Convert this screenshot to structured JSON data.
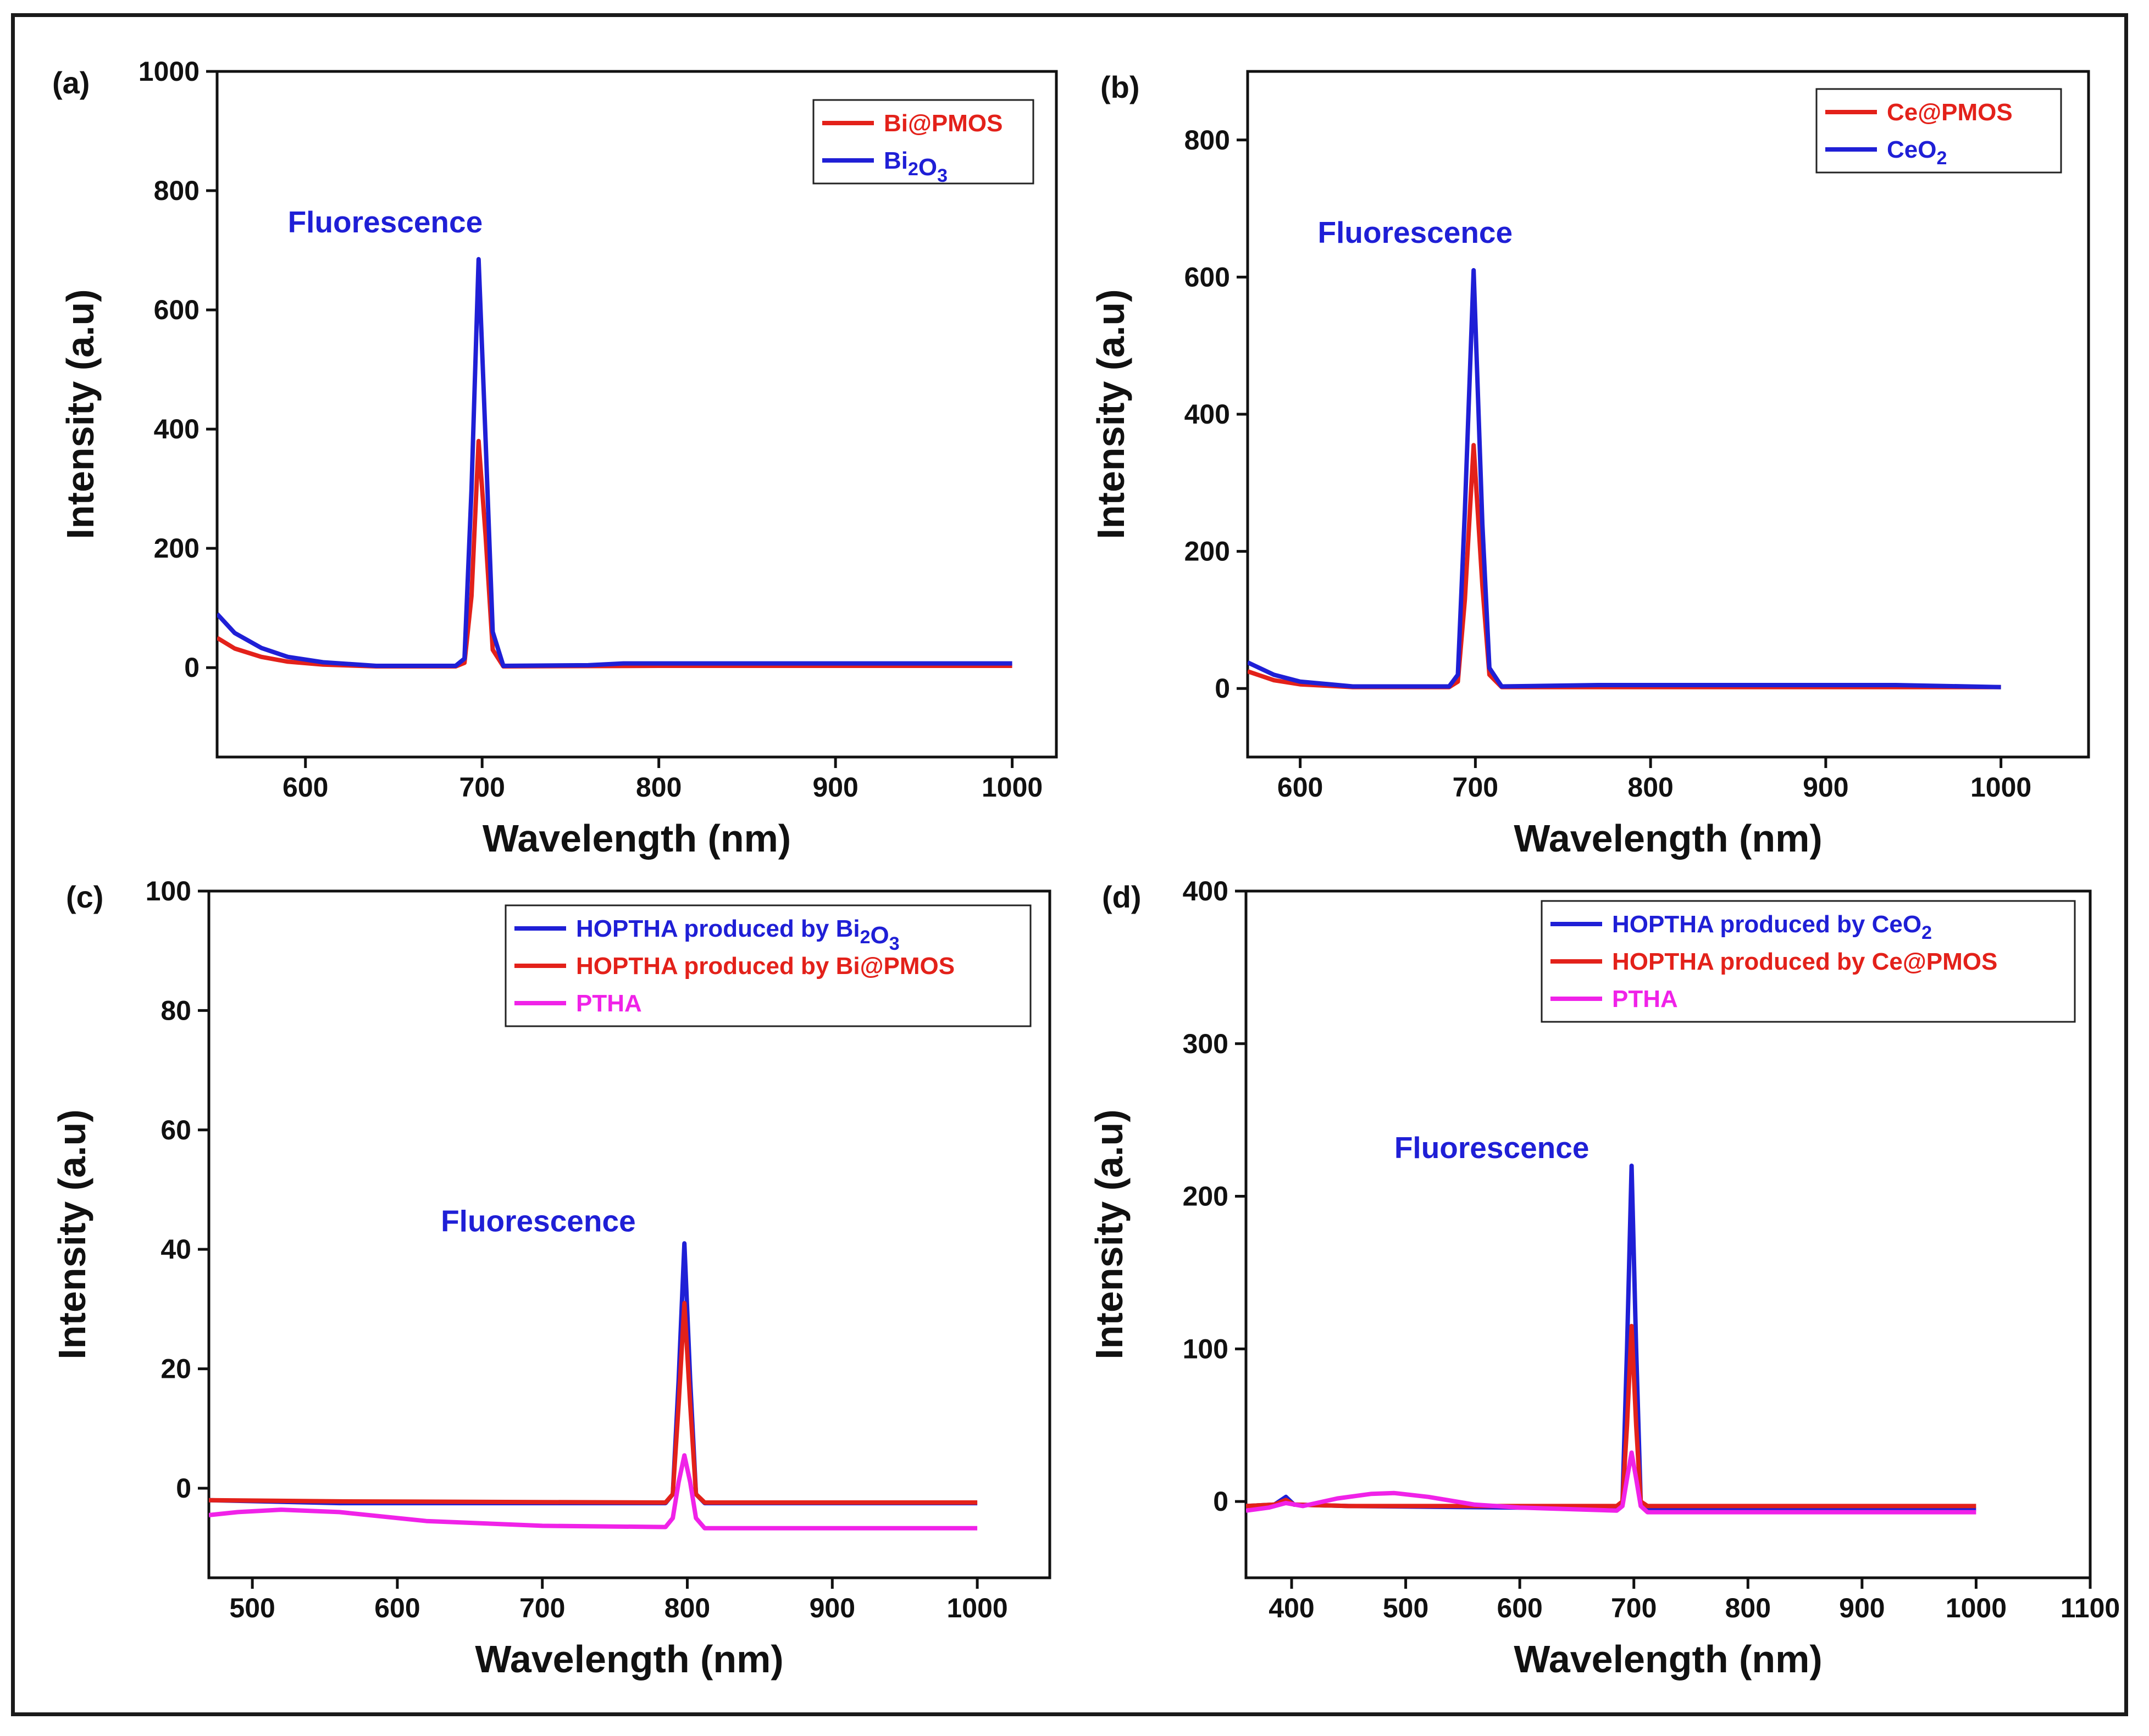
{
  "figure": {
    "colors": {
      "blue": "#1f1fd6",
      "red": "#e3211a",
      "magenta": "#f022e8",
      "axis": "#111111"
    }
  },
  "chart_data": [
    {
      "panel": "(a)",
      "type": "line",
      "xlabel": "Wavelength (nm)",
      "ylabel": "Intensity (a.u)",
      "xlim": [
        550,
        1025
      ],
      "ylim": [
        -150,
        1000
      ],
      "xticks": [
        600,
        700,
        800,
        900,
        1000
      ],
      "yticks": [
        0,
        200,
        400,
        600,
        800,
        1000
      ],
      "annotation": {
        "text": "Fluorescence",
        "x": 590,
        "y": 730
      },
      "legend": {
        "placement": "top-right"
      },
      "series": [
        {
          "name": "Bi@PMOS",
          "legend_parts": [
            [
              "Bi@PMOS",
              ""
            ]
          ],
          "color": "red",
          "points": [
            [
              550,
              50
            ],
            [
              560,
              32
            ],
            [
              575,
              18
            ],
            [
              590,
              10
            ],
            [
              610,
              5
            ],
            [
              640,
              2
            ],
            [
              685,
              2
            ],
            [
              690,
              8
            ],
            [
              694,
              120
            ],
            [
              698,
              380
            ],
            [
              702,
              220
            ],
            [
              706,
              30
            ],
            [
              712,
              2
            ],
            [
              800,
              3
            ],
            [
              1000,
              3
            ]
          ]
        },
        {
          "name": "Bi2O3",
          "legend_parts": [
            [
              "Bi",
              ""
            ],
            [
              "2",
              "sub"
            ],
            [
              "O",
              ""
            ],
            [
              "3",
              "sub"
            ]
          ],
          "color": "blue",
          "points": [
            [
              550,
              90
            ],
            [
              560,
              58
            ],
            [
              575,
              33
            ],
            [
              590,
              18
            ],
            [
              610,
              9
            ],
            [
              640,
              3
            ],
            [
              685,
              3
            ],
            [
              690,
              15
            ],
            [
              694,
              300
            ],
            [
              698,
              685
            ],
            [
              702,
              380
            ],
            [
              706,
              60
            ],
            [
              712,
              3
            ],
            [
              760,
              4
            ],
            [
              780,
              7
            ],
            [
              1000,
              7
            ]
          ]
        }
      ]
    },
    {
      "panel": "(b)",
      "type": "line",
      "xlabel": "Wavelength (nm)",
      "ylabel": "Intensity (a.u)",
      "xlim": [
        570,
        1050
      ],
      "ylim": [
        -100,
        900
      ],
      "xticks": [
        600,
        700,
        800,
        900,
        1000
      ],
      "yticks": [
        0,
        200,
        400,
        600,
        800
      ],
      "annotation": {
        "text": "Fluorescence",
        "x": 610,
        "y": 650
      },
      "legend": {
        "placement": "top-right"
      },
      "series": [
        {
          "name": "Ce@PMOS",
          "legend_parts": [
            [
              "Ce@PMOS",
              ""
            ]
          ],
          "color": "red",
          "points": [
            [
              570,
              25
            ],
            [
              585,
              12
            ],
            [
              600,
              6
            ],
            [
              630,
              2
            ],
            [
              685,
              2
            ],
            [
              690,
              10
            ],
            [
              694,
              130
            ],
            [
              699,
              355
            ],
            [
              704,
              150
            ],
            [
              708,
              20
            ],
            [
              715,
              2
            ],
            [
              800,
              2
            ],
            [
              1000,
              2
            ]
          ]
        },
        {
          "name": "CeO2",
          "legend_parts": [
            [
              "CeO",
              ""
            ],
            [
              "2",
              "sub"
            ]
          ],
          "color": "blue",
          "points": [
            [
              570,
              38
            ],
            [
              585,
              20
            ],
            [
              600,
              10
            ],
            [
              630,
              3
            ],
            [
              685,
              3
            ],
            [
              690,
              20
            ],
            [
              694,
              260
            ],
            [
              699,
              610
            ],
            [
              704,
              240
            ],
            [
              708,
              30
            ],
            [
              715,
              3
            ],
            [
              770,
              5
            ],
            [
              940,
              5
            ],
            [
              1000,
              2
            ]
          ]
        }
      ]
    },
    {
      "panel": "(c)",
      "type": "line",
      "xlabel": "Wavelength (nm)",
      "ylabel": "Intensity (a.u)",
      "xlim": [
        470,
        1050
      ],
      "ylim": [
        -15,
        100
      ],
      "xticks": [
        500,
        600,
        700,
        800,
        900,
        1000
      ],
      "yticks": [
        0,
        20,
        40,
        60,
        80,
        100
      ],
      "annotation": {
        "text": "Fluorescence",
        "x": 630,
        "y": 43
      },
      "legend": {
        "placement": "top-right"
      },
      "series": [
        {
          "name": "HOPTHA produced by Bi2O3",
          "legend_parts": [
            [
              "HOPTHA produced by Bi",
              ""
            ],
            [
              "2",
              "sub"
            ],
            [
              "O",
              ""
            ],
            [
              "3",
              "sub"
            ]
          ],
          "color": "blue",
          "points": [
            [
              470,
              -2
            ],
            [
              560,
              -2.5
            ],
            [
              785,
              -2.5
            ],
            [
              790,
              -1
            ],
            [
              794,
              18
            ],
            [
              798,
              41
            ],
            [
              802,
              18
            ],
            [
              806,
              -1
            ],
            [
              812,
              -2.5
            ],
            [
              1000,
              -2.5
            ]
          ]
        },
        {
          "name": "HOPTHA produced by Bi@PMOS",
          "legend_parts": [
            [
              "HOPTHA produced by Bi@PMOS",
              ""
            ]
          ],
          "color": "red",
          "points": [
            [
              470,
              -2
            ],
            [
              560,
              -2.2
            ],
            [
              785,
              -2.4
            ],
            [
              790,
              -1
            ],
            [
              794,
              14
            ],
            [
              798,
              31
            ],
            [
              802,
              14
            ],
            [
              806,
              -1
            ],
            [
              812,
              -2.4
            ],
            [
              1000,
              -2.4
            ]
          ]
        },
        {
          "name": "PTHA",
          "legend_parts": [
            [
              "PTHA",
              ""
            ]
          ],
          "color": "magenta",
          "points": [
            [
              470,
              -4.5
            ],
            [
              490,
              -4
            ],
            [
              520,
              -3.6
            ],
            [
              560,
              -4
            ],
            [
              620,
              -5.5
            ],
            [
              700,
              -6.3
            ],
            [
              785,
              -6.5
            ],
            [
              790,
              -5
            ],
            [
              794,
              1
            ],
            [
              798,
              5.5
            ],
            [
              802,
              1
            ],
            [
              806,
              -5
            ],
            [
              812,
              -6.7
            ],
            [
              1000,
              -6.7
            ]
          ]
        }
      ]
    },
    {
      "panel": "(d)",
      "type": "line",
      "xlabel": "Wavelength (nm)",
      "ylabel": "Intensity (a.u)",
      "xlim": [
        360,
        1100
      ],
      "ylim": [
        -50,
        400
      ],
      "xticks": [
        400,
        500,
        600,
        700,
        800,
        900,
        1000,
        1100
      ],
      "yticks": [
        0,
        100,
        200,
        300,
        400
      ],
      "annotation": {
        "text": "Fluorescence",
        "x": 490,
        "y": 225
      },
      "legend": {
        "placement": "top-right"
      },
      "series": [
        {
          "name": "HOPTHA produced by CeO2",
          "legend_parts": [
            [
              "HOPTHA produced by CeO",
              ""
            ],
            [
              "2",
              "sub"
            ]
          ],
          "color": "blue",
          "points": [
            [
              360,
              -3
            ],
            [
              385,
              -2
            ],
            [
              395,
              3
            ],
            [
              402,
              -2
            ],
            [
              450,
              -3
            ],
            [
              600,
              -4
            ],
            [
              685,
              -5
            ],
            [
              690,
              0
            ],
            [
              694,
              100
            ],
            [
              698,
              220
            ],
            [
              702,
              100
            ],
            [
              706,
              0
            ],
            [
              712,
              -5
            ],
            [
              1000,
              -5
            ]
          ]
        },
        {
          "name": "HOPTHA produced by Ce@PMOS",
          "legend_parts": [
            [
              "HOPTHA produced by Ce@PMOS",
              ""
            ]
          ],
          "color": "red",
          "points": [
            [
              360,
              -3
            ],
            [
              385,
              -2
            ],
            [
              395,
              1
            ],
            [
              402,
              -2
            ],
            [
              450,
              -3
            ],
            [
              600,
              -3
            ],
            [
              685,
              -3
            ],
            [
              690,
              0
            ],
            [
              694,
              50
            ],
            [
              698,
              115
            ],
            [
              702,
              50
            ],
            [
              706,
              0
            ],
            [
              712,
              -3
            ],
            [
              1000,
              -3
            ]
          ]
        },
        {
          "name": "PTHA",
          "legend_parts": [
            [
              "PTHA",
              ""
            ]
          ],
          "color": "magenta",
          "points": [
            [
              360,
              -6
            ],
            [
              380,
              -4
            ],
            [
              395,
              -1
            ],
            [
              410,
              -3
            ],
            [
              440,
              2
            ],
            [
              470,
              5
            ],
            [
              490,
              5.5
            ],
            [
              520,
              3
            ],
            [
              560,
              -2
            ],
            [
              600,
              -4
            ],
            [
              685,
              -6
            ],
            [
              690,
              -3
            ],
            [
              694,
              15
            ],
            [
              698,
              32
            ],
            [
              702,
              15
            ],
            [
              706,
              -3
            ],
            [
              712,
              -7
            ],
            [
              1000,
              -7
            ]
          ]
        }
      ]
    }
  ]
}
